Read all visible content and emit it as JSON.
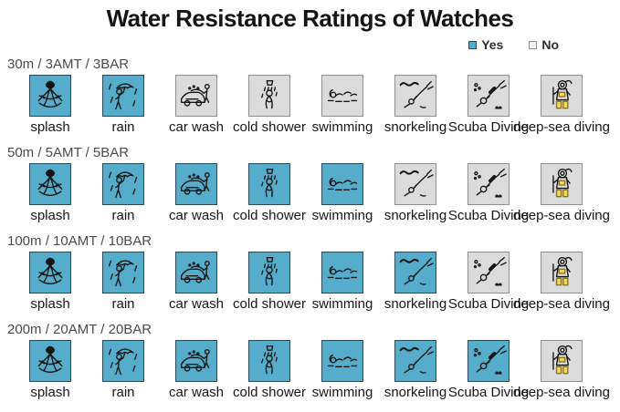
{
  "title": "Water Resistance Ratings of Watches",
  "legend": {
    "yes_label": "Yes",
    "no_label": "No"
  },
  "colors": {
    "yes_fill": "#55ADCB",
    "yes_border": "#2B4A55",
    "no_fill": "#DBDBDB",
    "no_border": "#8F8F8F",
    "boot_yellow": "#F0D95C",
    "text": "#151515"
  },
  "activities": [
    {
      "label": "splash",
      "icon": "splash-icon"
    },
    {
      "label": "rain",
      "icon": "rain-icon"
    },
    {
      "label": "car wash",
      "icon": "car-wash-icon"
    },
    {
      "label": "cold shower",
      "icon": "cold-shower-icon"
    },
    {
      "label": "swimming",
      "icon": "swimming-icon"
    },
    {
      "label": "snorkeling",
      "icon": "snorkeling-icon"
    },
    {
      "label": "Scuba Diving",
      "icon": "scuba-diving-icon"
    },
    {
      "label": "deep-sea diving",
      "icon": "deep-sea-diving-icon"
    }
  ],
  "rows": [
    {
      "label": "30m / 3AMT / 3BAR",
      "ratings": [
        "yes",
        "yes",
        "no",
        "no",
        "no",
        "no",
        "no",
        "no"
      ]
    },
    {
      "label": "50m / 5AMT / 5BAR",
      "ratings": [
        "yes",
        "yes",
        "yes",
        "yes",
        "yes",
        "no",
        "no",
        "no"
      ]
    },
    {
      "label": "100m / 10AMT / 10BAR",
      "ratings": [
        "yes",
        "yes",
        "yes",
        "yes",
        "yes",
        "yes",
        "no",
        "no"
      ]
    },
    {
      "label": "200m / 20AMT / 20BAR",
      "ratings": [
        "yes",
        "yes",
        "yes",
        "yes",
        "yes",
        "yes",
        "yes",
        "no"
      ]
    }
  ],
  "chart_data": {
    "type": "table",
    "title": "Water Resistance Ratings of Watches",
    "columns": [
      "splash",
      "rain",
      "car wash",
      "cold shower",
      "swimming",
      "snorkeling",
      "Scuba Diving",
      "deep-sea diving"
    ],
    "rows": [
      "30m / 3AMT / 3BAR",
      "50m / 5AMT / 5BAR",
      "100m / 10AMT / 10BAR",
      "200m / 20AMT / 20BAR"
    ],
    "values": [
      [
        "Yes",
        "Yes",
        "No",
        "No",
        "No",
        "No",
        "No",
        "No"
      ],
      [
        "Yes",
        "Yes",
        "Yes",
        "Yes",
        "Yes",
        "No",
        "No",
        "No"
      ],
      [
        "Yes",
        "Yes",
        "Yes",
        "Yes",
        "Yes",
        "Yes",
        "No",
        "No"
      ],
      [
        "Yes",
        "Yes",
        "Yes",
        "Yes",
        "Yes",
        "Yes",
        "Yes",
        "No"
      ]
    ],
    "legend": [
      "Yes",
      "No"
    ],
    "legend_position": "top-right"
  }
}
